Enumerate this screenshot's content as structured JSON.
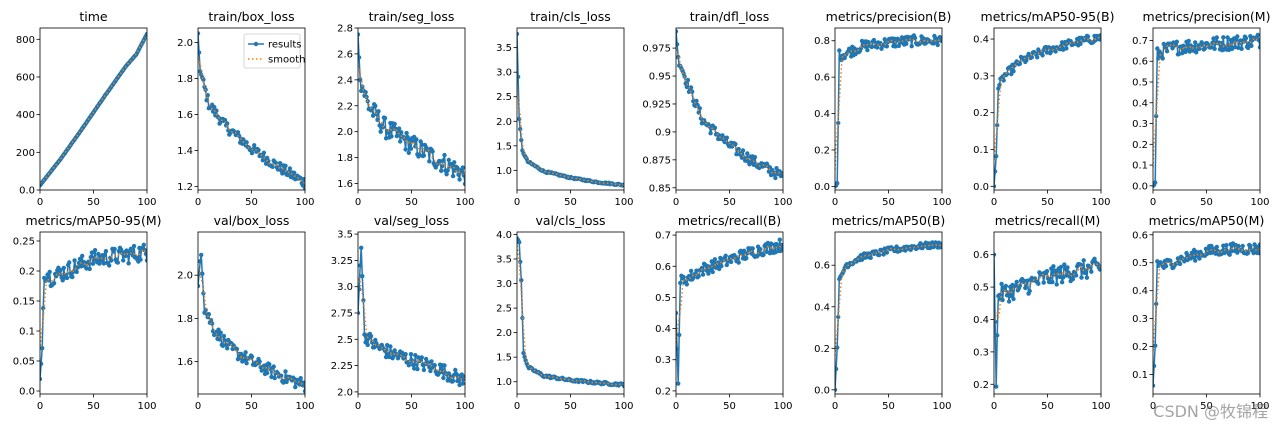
{
  "figure": {
    "watermark": "CSDN @牧锦程"
  },
  "colors": {
    "results": "#1f77b4",
    "smooth": "#ff7f0e"
  },
  "legend": {
    "results_label": "results",
    "smooth_label": "smooth"
  },
  "chart_data": [
    {
      "title": "time",
      "type": "line",
      "xlim": [
        0,
        100
      ],
      "ylim": [
        0,
        860
      ],
      "xticks": [
        0,
        50,
        100
      ],
      "yticks": [
        0,
        200,
        400,
        600,
        800
      ],
      "keypoints": [
        [
          0,
          25
        ],
        [
          20,
          170
        ],
        [
          40,
          330
        ],
        [
          60,
          495
        ],
        [
          80,
          655
        ],
        [
          90,
          720
        ],
        [
          100,
          828
        ]
      ],
      "noise": 0.003,
      "legend": false
    },
    {
      "title": "train/box_loss",
      "type": "line",
      "xlim": [
        0,
        100
      ],
      "ylim": [
        1.18,
        2.08
      ],
      "xticks": [
        0,
        50,
        100
      ],
      "yticks": [
        1.2,
        1.4,
        1.6,
        1.8,
        2.0
      ],
      "keypoints": [
        [
          0,
          2.05
        ],
        [
          2,
          1.84
        ],
        [
          10,
          1.66
        ],
        [
          25,
          1.54
        ],
        [
          50,
          1.41
        ],
        [
          75,
          1.31
        ],
        [
          100,
          1.22
        ]
      ],
      "noise": 0.03,
      "legend": true
    },
    {
      "title": "train/seg_loss",
      "type": "line",
      "xlim": [
        0,
        100
      ],
      "ylim": [
        1.55,
        2.8
      ],
      "xticks": [
        0,
        50,
        100
      ],
      "yticks": [
        1.6,
        1.8,
        2.0,
        2.2,
        2.4,
        2.6,
        2.8
      ],
      "keypoints": [
        [
          0,
          2.75
        ],
        [
          2,
          2.4
        ],
        [
          10,
          2.2
        ],
        [
          25,
          2.03
        ],
        [
          50,
          1.9
        ],
        [
          75,
          1.78
        ],
        [
          100,
          1.67
        ]
      ],
      "noise": 0.08,
      "legend": false
    },
    {
      "title": "train/cls_loss",
      "type": "line",
      "xlim": [
        0,
        100
      ],
      "ylim": [
        0.6,
        3.9
      ],
      "xticks": [
        0,
        50,
        100
      ],
      "yticks": [
        1.0,
        1.5,
        2.0,
        2.5,
        3.0,
        3.5
      ],
      "keypoints": [
        [
          0,
          3.78
        ],
        [
          2,
          2.05
        ],
        [
          5,
          1.4
        ],
        [
          10,
          1.18
        ],
        [
          25,
          0.98
        ],
        [
          50,
          0.85
        ],
        [
          75,
          0.76
        ],
        [
          100,
          0.7
        ]
      ],
      "noise": 0.015,
      "legend": false
    },
    {
      "title": "train/dfl_loss",
      "type": "line",
      "xlim": [
        0,
        100
      ],
      "ylim": [
        0.848,
        0.993
      ],
      "xticks": [
        0,
        50,
        100
      ],
      "yticks": [
        0.85,
        0.875,
        0.9,
        0.925,
        0.95,
        0.975
      ],
      "keypoints": [
        [
          0,
          0.99
        ],
        [
          2,
          0.967
        ],
        [
          10,
          0.945
        ],
        [
          25,
          0.91
        ],
        [
          50,
          0.888
        ],
        [
          75,
          0.872
        ],
        [
          100,
          0.86
        ]
      ],
      "noise": 0.005,
      "legend": false
    },
    {
      "title": "metrics/precision(B)",
      "type": "line",
      "xlim": [
        0,
        100
      ],
      "ylim": [
        -0.02,
        0.87
      ],
      "xticks": [
        0,
        50,
        100
      ],
      "yticks": [
        0.0,
        0.2,
        0.4,
        0.6,
        0.8
      ],
      "keypoints": [
        [
          0,
          0.0
        ],
        [
          2,
          0.01
        ],
        [
          4,
          0.72
        ],
        [
          10,
          0.73
        ],
        [
          25,
          0.77
        ],
        [
          50,
          0.79
        ],
        [
          75,
          0.8
        ],
        [
          100,
          0.8
        ]
      ],
      "noise": 0.03,
      "legend": false
    },
    {
      "title": "metrics/mAP50-95(B)",
      "type": "line",
      "xlim": [
        0,
        100
      ],
      "ylim": [
        -0.01,
        0.43
      ],
      "xticks": [
        0,
        50,
        100
      ],
      "yticks": [
        0.0,
        0.1,
        0.2,
        0.3,
        0.4
      ],
      "keypoints": [
        [
          0,
          0.0
        ],
        [
          2,
          0.08
        ],
        [
          4,
          0.27
        ],
        [
          10,
          0.3
        ],
        [
          25,
          0.34
        ],
        [
          50,
          0.37
        ],
        [
          75,
          0.39
        ],
        [
          100,
          0.405
        ]
      ],
      "noise": 0.012,
      "legend": false
    },
    {
      "title": "metrics/precision(M)",
      "type": "line",
      "xlim": [
        0,
        100
      ],
      "ylim": [
        -0.02,
        0.76
      ],
      "xticks": [
        0,
        50,
        100
      ],
      "yticks": [
        0.0,
        0.1,
        0.2,
        0.3,
        0.4,
        0.5,
        0.6,
        0.7
      ],
      "keypoints": [
        [
          0,
          0.0
        ],
        [
          2,
          0.01
        ],
        [
          4,
          0.63
        ],
        [
          10,
          0.65
        ],
        [
          25,
          0.67
        ],
        [
          50,
          0.68
        ],
        [
          75,
          0.69
        ],
        [
          100,
          0.7
        ]
      ],
      "noise": 0.035,
      "legend": false
    },
    {
      "title": "metrics/mAP50-95(M)",
      "type": "line",
      "xlim": [
        0,
        100
      ],
      "ylim": [
        -0.005,
        0.265
      ],
      "xticks": [
        0,
        50,
        100
      ],
      "yticks": [
        0.0,
        0.05,
        0.1,
        0.15,
        0.2,
        0.25
      ],
      "keypoints": [
        [
          0,
          0.02
        ],
        [
          2,
          0.07
        ],
        [
          4,
          0.2
        ],
        [
          10,
          0.19
        ],
        [
          25,
          0.2
        ],
        [
          50,
          0.22
        ],
        [
          75,
          0.225
        ],
        [
          100,
          0.232
        ]
      ],
      "noise": 0.015,
      "legend": false
    },
    {
      "title": "val/box_loss",
      "type": "line",
      "xlim": [
        0,
        100
      ],
      "ylim": [
        1.45,
        2.2
      ],
      "xticks": [
        0,
        50,
        100
      ],
      "yticks": [
        1.6,
        1.8,
        2.0
      ],
      "keypoints": [
        [
          0,
          1.95
        ],
        [
          3,
          2.12
        ],
        [
          6,
          1.85
        ],
        [
          15,
          1.75
        ],
        [
          30,
          1.66
        ],
        [
          50,
          1.6
        ],
        [
          75,
          1.54
        ],
        [
          100,
          1.49
        ]
      ],
      "noise": 0.03,
      "legend": false
    },
    {
      "title": "val/seg_loss",
      "type": "line",
      "xlim": [
        0,
        100
      ],
      "ylim": [
        1.98,
        3.52
      ],
      "xticks": [
        0,
        50,
        100
      ],
      "yticks": [
        2.0,
        2.25,
        2.5,
        2.75,
        3.0,
        3.25,
        3.5
      ],
      "keypoints": [
        [
          0,
          2.75
        ],
        [
          3,
          3.42
        ],
        [
          6,
          2.55
        ],
        [
          15,
          2.45
        ],
        [
          30,
          2.37
        ],
        [
          50,
          2.3
        ],
        [
          75,
          2.22
        ],
        [
          100,
          2.1
        ]
      ],
      "noise": 0.07,
      "legend": false
    },
    {
      "title": "val/cls_loss",
      "type": "line",
      "xlim": [
        0,
        100
      ],
      "ylim": [
        0.75,
        4.05
      ],
      "xticks": [
        0,
        50,
        100
      ],
      "yticks": [
        1.0,
        1.5,
        2.0,
        2.5,
        3.0,
        3.5,
        4.0
      ],
      "keypoints": [
        [
          0,
          3.92
        ],
        [
          2,
          3.85
        ],
        [
          4,
          3.1
        ],
        [
          6,
          1.6
        ],
        [
          10,
          1.3
        ],
        [
          25,
          1.12
        ],
        [
          50,
          1.03
        ],
        [
          75,
          0.98
        ],
        [
          100,
          0.94
        ]
      ],
      "noise": 0.025,
      "legend": false
    },
    {
      "title": "metrics/recall(B)",
      "type": "line",
      "xlim": [
        0,
        100
      ],
      "ylim": [
        0.19,
        0.71
      ],
      "xticks": [
        0,
        50,
        100
      ],
      "yticks": [
        0.2,
        0.3,
        0.4,
        0.5,
        0.6,
        0.7
      ],
      "keypoints": [
        [
          0,
          0.45
        ],
        [
          2,
          0.22
        ],
        [
          4,
          0.55
        ],
        [
          10,
          0.56
        ],
        [
          25,
          0.59
        ],
        [
          50,
          0.62
        ],
        [
          75,
          0.65
        ],
        [
          100,
          0.67
        ]
      ],
      "noise": 0.02,
      "legend": false
    },
    {
      "title": "metrics/mAP50(B)",
      "type": "line",
      "xlim": [
        0,
        100
      ],
      "ylim": [
        -0.02,
        0.76
      ],
      "xticks": [
        0,
        50,
        100
      ],
      "yticks": [
        0.0,
        0.2,
        0.4,
        0.6
      ],
      "keypoints": [
        [
          0,
          0.0
        ],
        [
          2,
          0.2
        ],
        [
          4,
          0.52
        ],
        [
          10,
          0.6
        ],
        [
          25,
          0.64
        ],
        [
          50,
          0.67
        ],
        [
          75,
          0.69
        ],
        [
          100,
          0.7
        ]
      ],
      "noise": 0.015,
      "legend": false
    },
    {
      "title": "metrics/recall(M)",
      "type": "line",
      "xlim": [
        0,
        100
      ],
      "ylim": [
        0.17,
        0.67
      ],
      "xticks": [
        0,
        50,
        100
      ],
      "yticks": [
        0.2,
        0.3,
        0.4,
        0.5,
        0.6
      ],
      "keypoints": [
        [
          0,
          0.6
        ],
        [
          2,
          0.19
        ],
        [
          4,
          0.48
        ],
        [
          10,
          0.48
        ],
        [
          25,
          0.5
        ],
        [
          50,
          0.53
        ],
        [
          75,
          0.55
        ],
        [
          100,
          0.56
        ]
      ],
      "noise": 0.03,
      "legend": false
    },
    {
      "title": "metrics/mAP50(M)",
      "type": "line",
      "xlim": [
        0,
        100
      ],
      "ylim": [
        0.03,
        0.61
      ],
      "xticks": [
        0,
        50,
        100
      ],
      "yticks": [
        0.1,
        0.2,
        0.3,
        0.4,
        0.5,
        0.6
      ],
      "keypoints": [
        [
          0,
          0.06
        ],
        [
          2,
          0.2
        ],
        [
          4,
          0.5
        ],
        [
          10,
          0.49
        ],
        [
          25,
          0.51
        ],
        [
          50,
          0.54
        ],
        [
          75,
          0.55
        ],
        [
          100,
          0.55
        ]
      ],
      "noise": 0.02,
      "legend": false
    }
  ]
}
